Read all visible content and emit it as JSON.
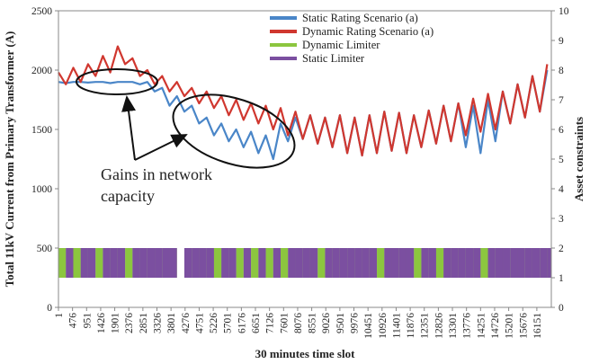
{
  "chart_data": {
    "type": "line",
    "x_label": "30 minutes time slot",
    "y_label": "Total 11kV Current from Primary Transformer (A)",
    "y2_label": "Asset constraints",
    "annotation": [
      "Gains in network",
      "capacity"
    ],
    "xlim": [
      1,
      16640
    ],
    "xticks": [
      1,
      476,
      951,
      1426,
      1901,
      2376,
      2851,
      3326,
      3801,
      4276,
      4751,
      5226,
      5701,
      6176,
      6651,
      7126,
      7601,
      8076,
      8551,
      9026,
      9501,
      9976,
      10451,
      10926,
      11401,
      11876,
      12351,
      12826,
      13301,
      13776,
      14251,
      14726,
      15201,
      15676,
      16151
    ],
    "ylim": [
      0,
      2500
    ],
    "yticks": [
      0,
      500,
      1000,
      1500,
      2000,
      2500
    ],
    "y2lim": [
      0,
      10
    ],
    "y2ticks": [
      0,
      1,
      2,
      3,
      4,
      5,
      6,
      7,
      8,
      9,
      10
    ],
    "legend": "top-right",
    "x": [
      1,
      251,
      501,
      751,
      1001,
      1251,
      1501,
      1751,
      2001,
      2251,
      2501,
      2751,
      3001,
      3251,
      3501,
      3751,
      4001,
      4251,
      4501,
      4751,
      5001,
      5251,
      5501,
      5751,
      6001,
      6251,
      6501,
      6751,
      7001,
      7251,
      7501,
      7751,
      8001,
      8251,
      8501,
      8751,
      9001,
      9251,
      9501,
      9751,
      10001,
      10251,
      10501,
      10751,
      11001,
      11251,
      11501,
      11751,
      12001,
      12251,
      12501,
      12751,
      13001,
      13251,
      13501,
      13751,
      14001,
      14251,
      14501,
      14751,
      15001,
      15251,
      15501,
      15751,
      16001,
      16251,
      16501
    ],
    "series": [
      {
        "name": "Static Rating Scenario (a)",
        "color": "#4a86c8",
        "kind": "line",
        "values": [
          1900,
          1890,
          1900,
          1900,
          1895,
          1900,
          1900,
          1890,
          1900,
          1900,
          1900,
          1880,
          1900,
          1820,
          1850,
          1700,
          1780,
          1650,
          1700,
          1550,
          1600,
          1450,
          1550,
          1400,
          1500,
          1350,
          1480,
          1300,
          1450,
          1250,
          1550,
          1400,
          1600,
          1420,
          1620,
          1380,
          1600,
          1350,
          1620,
          1300,
          1600,
          1280,
          1620,
          1300,
          1650,
          1320,
          1640,
          1300,
          1620,
          1350,
          1660,
          1380,
          1700,
          1400,
          1720,
          1350,
          1700,
          1300,
          1750,
          1400,
          1820,
          1550,
          1880,
          1600,
          1950,
          1650,
          2000
        ]
      },
      {
        "name": "Dynamic Rating Scenario (a)",
        "color": "#d0372f",
        "kind": "line",
        "values": [
          1980,
          1880,
          2020,
          1900,
          2050,
          1950,
          2120,
          1980,
          2200,
          2050,
          2100,
          1950,
          2000,
          1880,
          1950,
          1820,
          1900,
          1780,
          1850,
          1720,
          1820,
          1680,
          1780,
          1620,
          1750,
          1580,
          1720,
          1550,
          1700,
          1500,
          1680,
          1450,
          1650,
          1420,
          1620,
          1380,
          1600,
          1350,
          1620,
          1300,
          1600,
          1280,
          1620,
          1300,
          1650,
          1320,
          1640,
          1300,
          1620,
          1350,
          1660,
          1380,
          1700,
          1400,
          1720,
          1450,
          1760,
          1480,
          1800,
          1500,
          1820,
          1550,
          1880,
          1600,
          1950,
          1650,
          2050
        ]
      },
      {
        "name": "Dynamic Limiter",
        "color": "#8cc63f",
        "kind": "limiter",
        "axis": "y2",
        "values": [
          2,
          2,
          2,
          2,
          2,
          2,
          2,
          2,
          2,
          2,
          2,
          2,
          2,
          2,
          2,
          2,
          1,
          2,
          2,
          2,
          2,
          2,
          2,
          2,
          2,
          2,
          2,
          2,
          2,
          2,
          2,
          2,
          2,
          2,
          2,
          2,
          2,
          2,
          1,
          2,
          2,
          2,
          2,
          2,
          2,
          2,
          2,
          2,
          2,
          2,
          2,
          2,
          2,
          2,
          2,
          2,
          2,
          2,
          2,
          2,
          2,
          2,
          2,
          2,
          2,
          2,
          2
        ]
      },
      {
        "name": "Static Limiter",
        "color": "#7b4fa0",
        "kind": "limiter",
        "axis": "y2",
        "values": [
          1,
          2,
          1,
          2,
          2,
          1,
          2,
          2,
          2,
          1,
          2,
          2,
          2,
          2,
          2,
          2,
          1,
          2,
          2,
          2,
          2,
          1,
          2,
          2,
          1,
          2,
          1,
          2,
          1,
          2,
          1,
          2,
          2,
          2,
          2,
          1,
          2,
          2,
          2,
          2,
          2,
          2,
          2,
          1,
          2,
          2,
          2,
          2,
          1,
          2,
          2,
          1,
          2,
          2,
          2,
          2,
          2,
          1,
          2,
          2,
          2,
          2,
          2,
          2,
          2,
          2,
          2
        ]
      }
    ]
  }
}
